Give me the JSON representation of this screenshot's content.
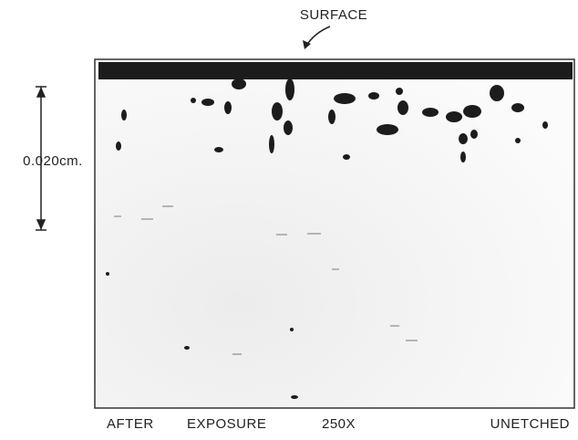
{
  "labels": {
    "surface": "SURFACE",
    "scale": "0.020cm.",
    "caption": [
      "AFTER",
      "EXPOSURE",
      "250X",
      "UNETCHED"
    ]
  }
}
